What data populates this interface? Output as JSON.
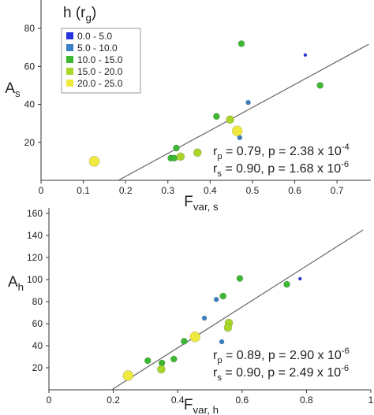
{
  "chart_data": [
    {
      "type": "scatter",
      "y_label": {
        "text": "A",
        "sub": "s"
      },
      "x_label": {
        "text": "F",
        "sub": "var, s"
      },
      "xlim": [
        0,
        0.78
      ],
      "xticks": [
        0,
        0.1,
        0.2,
        0.3,
        0.4,
        0.5,
        0.6,
        0.7
      ],
      "ylim": [
        0,
        95
      ],
      "yticks": [
        20,
        40,
        60,
        80
      ],
      "legend": {
        "title": {
          "text": "h (r",
          "sub": "g",
          "after": ")"
        },
        "position": "upper left"
      },
      "series": [
        {
          "name": "0.0 - 5.0",
          "color": "#2233dd",
          "x": [
            0.625
          ],
          "y": [
            66
          ]
        },
        {
          "name": "5.0 - 10.0",
          "color": "#3a80c4",
          "x": [
            0.47,
            0.49
          ],
          "y": [
            22.5,
            41
          ]
        },
        {
          "name": "10.0 - 15.0",
          "color": "#3cb832",
          "x": [
            0.307,
            0.315,
            0.32,
            0.415,
            0.474,
            0.66
          ],
          "y": [
            11.7,
            11.7,
            17,
            33.7,
            72,
            50
          ]
        },
        {
          "name": "15.0 - 20.0",
          "color": "#a8d62a",
          "x": [
            0.33,
            0.37,
            0.447
          ],
          "y": [
            12.5,
            14.6,
            32
          ]
        },
        {
          "name": "20.0 - 25.0",
          "color": "#f0ea40",
          "x": [
            0.126,
            0.464
          ],
          "y": [
            10,
            26
          ]
        }
      ],
      "fit": {
        "x": [
          0.183,
          0.775
        ],
        "y": [
          0,
          71.7
        ]
      },
      "annotations": [
        {
          "text": "r",
          "sub": "p",
          "after": " = 0.79, p = 2.38 x 10",
          "sup": "-4"
        },
        {
          "text": "r",
          "sub": "s",
          "after": " = 0.90, p = 1.68 x 10",
          "sup": "-6"
        }
      ]
    },
    {
      "type": "scatter",
      "y_label": {
        "text": "A",
        "sub": "h"
      },
      "x_label": {
        "text": "F",
        "sub": "var, h"
      },
      "xlim": [
        0,
        1.0
      ],
      "xticks": [
        0,
        0.2,
        0.4,
        0.6,
        0.8,
        1
      ],
      "ylim": [
        0,
        165
      ],
      "yticks": [
        20,
        40,
        60,
        80,
        100,
        120,
        140,
        160
      ],
      "series": [
        {
          "color": "#2233dd",
          "x": [
            0.78
          ],
          "y": [
            100.7
          ]
        },
        {
          "color": "#3a80c4",
          "x": [
            0.483,
            0.52,
            0.537
          ],
          "y": [
            65,
            82,
            43.6
          ]
        },
        {
          "color": "#3cb832",
          "x": [
            0.307,
            0.351,
            0.388,
            0.42,
            0.541,
            0.593,
            0.739
          ],
          "y": [
            26.4,
            24.3,
            27.9,
            44,
            85,
            101,
            95.7
          ]
        },
        {
          "color": "#a8d62a",
          "x": [
            0.349,
            0.559,
            0.556
          ],
          "y": [
            18.6,
            60.7,
            56.4
          ]
        },
        {
          "color": "#f0ea40",
          "x": [
            0.246,
            0.454
          ],
          "y": [
            12.9,
            48
          ]
        }
      ],
      "fit": {
        "x": [
          0.195,
          0.976
        ],
        "y": [
          0,
          145
        ]
      },
      "annotations": [
        {
          "text": "r",
          "sub": "p",
          "after": " = 0.89, p = 2.90 x 10",
          "sup": "-6"
        },
        {
          "text": "r",
          "sub": "s",
          "after": " = 0.90, p = 2.49 x 10",
          "sup": "-6"
        }
      ]
    }
  ]
}
